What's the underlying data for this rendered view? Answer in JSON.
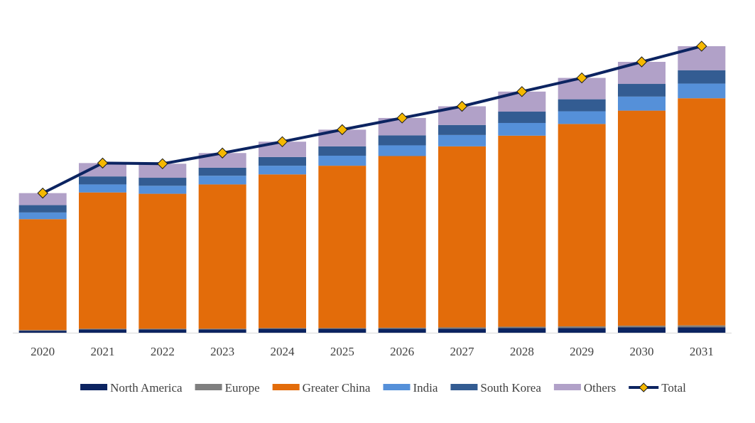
{
  "chart_data": {
    "type": "bar",
    "stacked": true,
    "title": "",
    "xlabel": "",
    "ylabel": "",
    "categories": [
      "2020",
      "2021",
      "2022",
      "2023",
      "2024",
      "2025",
      "2026",
      "2027",
      "2028",
      "2029",
      "2030",
      "2031"
    ],
    "ylim": [
      0,
      430
    ],
    "grid": false,
    "legend_position": "bottom",
    "series": [
      {
        "name": "North America",
        "color": "#0C2461",
        "values": [
          3,
          5,
          5,
          5,
          6,
          6,
          6,
          6,
          7,
          7,
          8,
          8
        ]
      },
      {
        "name": "Europe",
        "color": "#7F7F7F",
        "values": [
          1,
          1,
          1,
          1,
          1,
          1,
          1.5,
          2,
          2,
          2.5,
          2.5,
          3
        ]
      },
      {
        "name": "Greater China",
        "color": "#E36C0A",
        "values": [
          166,
          204,
          202,
          216,
          230,
          243,
          257,
          271,
          286,
          303,
          322,
          340
        ]
      },
      {
        "name": "India",
        "color": "#5590D9",
        "values": [
          10,
          12,
          12,
          13,
          13,
          15,
          16,
          17,
          19,
          19,
          21,
          22
        ]
      },
      {
        "name": "South Korea",
        "color": "#335C92",
        "values": [
          11,
          12,
          12,
          12,
          13,
          14,
          15,
          15,
          17,
          18,
          19,
          20
        ]
      },
      {
        "name": "Others",
        "color": "#B1A1C8",
        "values": [
          18,
          20,
          21,
          22,
          23,
          25,
          26,
          28,
          30,
          32,
          33,
          36
        ]
      }
    ],
    "total": {
      "name": "Total",
      "line_color": "#0C2461",
      "marker_color": "#F5B800",
      "values": [
        209,
        254,
        253,
        269,
        286,
        304,
        321.5,
        339,
        361,
        381.5,
        405.5,
        429
      ]
    }
  }
}
